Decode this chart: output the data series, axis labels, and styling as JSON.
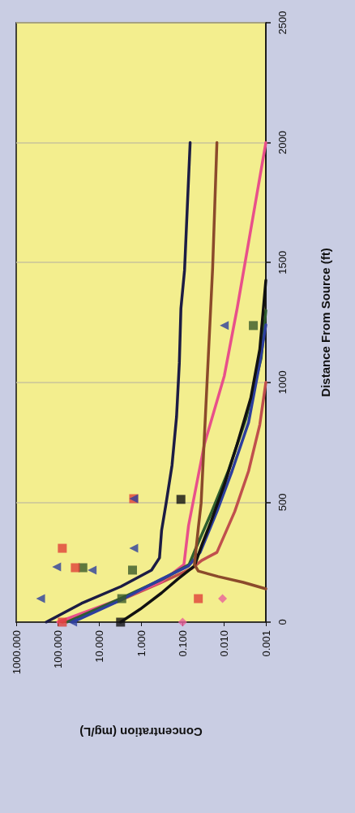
{
  "chart_data": {
    "type": "line",
    "xlabel": "Concentration (mg/L)",
    "ylabel": "Distance From Source (ft)",
    "ylim": [
      0,
      2500
    ],
    "yticks": [
      0,
      500,
      1000,
      1500,
      2000,
      2500
    ],
    "xlim": [
      1000,
      0.001
    ],
    "xticks": [
      {
        "value": 0.001,
        "label": "0.001"
      },
      {
        "value": 0.01,
        "label": "0.010"
      },
      {
        "value": 0.1,
        "label": "0.100"
      },
      {
        "value": 1,
        "label": "1.000"
      },
      {
        "value": 10,
        "label": "10.000"
      },
      {
        "value": 100,
        "label": "100.000"
      },
      {
        "value": 1000,
        "label": "1000.000"
      }
    ],
    "log": "x",
    "grid": "y",
    "marker": "none",
    "line_style": "solid",
    "series": [
      {
        "color": "#1c1c44",
        "values": [
          0,
          78,
          149,
          217,
          268,
          383,
          495,
          654,
          857,
          1081,
          1308,
          1467,
          2000
        ],
        "x": [
          190,
          27,
          3,
          0.56,
          0.36,
          0.32,
          0.25,
          0.18,
          0.14,
          0.12,
          0.11,
          0.09,
          0.066
        ]
      },
      {
        "color": "#c0504d",
        "values": [
          0,
          88,
          163,
          224,
          257,
          291,
          461,
          630,
          823,
          1000
        ],
        "x": [
          78,
          3.5,
          0.35,
          0.06,
          0.035,
          0.015,
          0.0056,
          0.0026,
          0.0014,
          0.001
        ]
      },
      {
        "color": "#e8508a",
        "values": [
          0,
          98,
          169,
          240,
          403,
          742,
          1026,
          1308,
          2000
        ],
        "x": [
          100,
          3,
          0.32,
          0.093,
          0.072,
          0.03,
          0.01,
          0.0049,
          0.001
        ]
      },
      {
        "color": "#2e5e2e",
        "values": [
          0,
          100,
          180,
          240,
          320,
          460,
          630,
          850,
          1100,
          1300
        ],
        "x": [
          60,
          3,
          0.3,
          0.07,
          0.045,
          0.02,
          0.008,
          0.003,
          0.0013,
          0.001
        ]
      },
      {
        "color": "#2d3f9e",
        "values": [
          0,
          88,
          180,
          234,
          291,
          461,
          630,
          833,
          1081,
          1240
        ],
        "x": [
          44,
          3.4,
          0.32,
          0.072,
          0.038,
          0.015,
          0.0065,
          0.0026,
          0.0014,
          0.001
        ]
      },
      {
        "color": "#111111",
        "values": [
          0,
          54,
          122,
          180,
          234,
          325,
          417,
          572,
          742,
          935,
          1138,
          1426
        ],
        "x": [
          3.1,
          1.05,
          0.32,
          0.13,
          0.052,
          0.034,
          0.021,
          0.01,
          0.0049,
          0.0023,
          0.0014,
          0.001
        ]
      },
      {
        "color": "#8b4a2b",
        "values": [
          139,
          166,
          190,
          213,
          240,
          393,
          495,
          993,
          1477,
          2000
        ],
        "x": [
          0.001,
          0.0035,
          0.014,
          0.042,
          0.052,
          0.042,
          0.036,
          0.026,
          0.019,
          0.015
        ]
      },
      {
        "type": "scatter",
        "marker": "square",
        "color": "#111111",
        "values": [
          0,
          512
        ],
        "x": [
          3.1,
          0.11
        ]
      },
      {
        "type": "scatter",
        "marker": "square",
        "color": "#3a5a2a",
        "values": [
          98,
          217,
          227,
          1237
        ],
        "x": [
          2.9,
          1.6,
          25,
          0.002
        ]
      },
      {
        "type": "scatter",
        "marker": "square",
        "color": "#e0403a",
        "values": [
          0,
          98,
          227,
          308,
          515
        ],
        "x": [
          78,
          0.042,
          38,
          78,
          1.5
        ]
      },
      {
        "type": "scatter",
        "marker": "triangle",
        "color": "#2d3f9e",
        "values": [
          0,
          98,
          217,
          230,
          308,
          515,
          1237
        ],
        "x": [
          44,
          260,
          15,
          107,
          1.5,
          1.5,
          0.01
        ]
      },
      {
        "type": "scatter",
        "marker": "diamond",
        "color": "#e8609a",
        "values": [
          0,
          98
        ],
        "x": [
          0.1,
          0.011
        ]
      }
    ]
  }
}
